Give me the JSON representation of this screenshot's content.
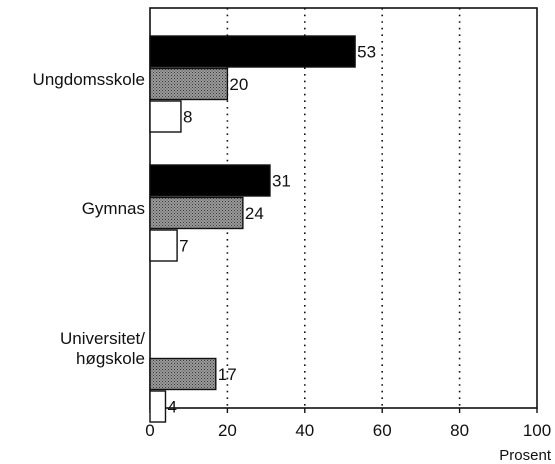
{
  "chart_data": {
    "type": "bar",
    "orientation": "horizontal",
    "categories": [
      "Ungdomsskole",
      "Gymnas",
      "Universitet/ høgskole"
    ],
    "category_lines": [
      [
        "Ungdomsskole"
      ],
      [
        "Gymnas"
      ],
      [
        "Universitet/",
        "høgskole"
      ]
    ],
    "series": [
      {
        "values": [
          53,
          31,
          null
        ],
        "color": "#000000",
        "pattern": "solid"
      },
      {
        "values": [
          20,
          24,
          17
        ],
        "color": "#8a8a8a",
        "pattern": "dotted"
      },
      {
        "values": [
          8,
          7,
          4
        ],
        "color": "#ffffff",
        "pattern": "open"
      }
    ],
    "xlim": [
      0,
      100
    ],
    "xticks": [
      0,
      20,
      40,
      60,
      80,
      100
    ],
    "xlabel": "Prosent",
    "ylabel": "",
    "title": "",
    "grid": "vertical dotted lines at 20, 40, 60, 80",
    "legend": "none"
  }
}
